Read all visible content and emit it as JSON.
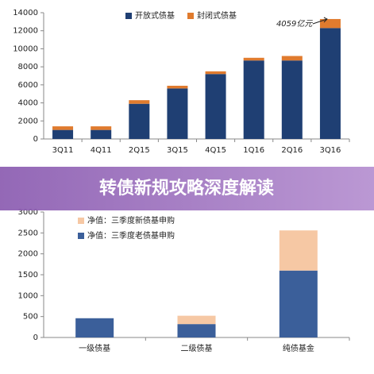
{
  "chart_data": [
    {
      "type": "stacked-bar",
      "categories": [
        "3Q11",
        "4Q11",
        "2Q15",
        "3Q15",
        "4Q15",
        "1Q16",
        "2Q16",
        "3Q16"
      ],
      "series": [
        {
          "name": "开放式债基",
          "color": "#1f3f73",
          "values": [
            1000,
            1000,
            3900,
            5600,
            7200,
            8700,
            8700,
            12300
          ]
        },
        {
          "name": "封闭式债基",
          "color": "#e07b2e",
          "values": [
            400,
            400,
            400,
            300,
            300,
            300,
            500,
            1000
          ]
        }
      ],
      "ylim": [
        0,
        14000
      ],
      "yticks": [
        0,
        2000,
        4000,
        6000,
        8000,
        10000,
        12000,
        14000
      ],
      "annotations": [
        "4059亿元"
      ]
    },
    {
      "type": "stacked-bar",
      "categories": [
        "一级债基",
        "二级债基",
        "纯债基金"
      ],
      "series": [
        {
          "name": "净值：三季度老债基申购",
          "color": "#3b5f9a",
          "values": [
            460,
            320,
            1600
          ]
        },
        {
          "name": "净值：三季度新债基申购",
          "color": "#f6c8a4",
          "values": [
            0,
            200,
            960
          ]
        }
      ],
      "ylim": [
        0,
        3000
      ],
      "yticks": [
        0,
        500,
        1000,
        1500,
        2000,
        2500,
        3000
      ]
    }
  ],
  "banner": {
    "text": "转债新规攻略深度解读"
  }
}
